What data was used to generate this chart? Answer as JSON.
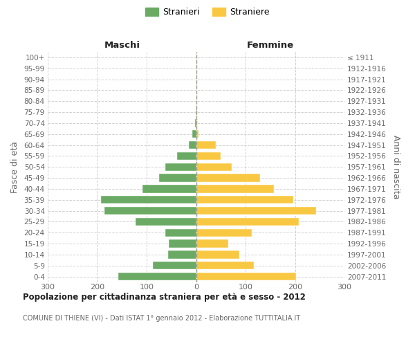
{
  "age_groups": [
    "0-4",
    "5-9",
    "10-14",
    "15-19",
    "20-24",
    "25-29",
    "30-34",
    "35-39",
    "40-44",
    "45-49",
    "50-54",
    "55-59",
    "60-64",
    "65-69",
    "70-74",
    "75-79",
    "80-84",
    "85-89",
    "90-94",
    "95-99",
    "100+"
  ],
  "birth_years": [
    "2007-2011",
    "2002-2006",
    "1997-2001",
    "1992-1996",
    "1987-1991",
    "1982-1986",
    "1977-1981",
    "1972-1976",
    "1967-1971",
    "1962-1966",
    "1957-1961",
    "1952-1956",
    "1947-1951",
    "1942-1946",
    "1937-1941",
    "1932-1936",
    "1927-1931",
    "1922-1926",
    "1917-1921",
    "1912-1916",
    "≤ 1911"
  ],
  "males": [
    158,
    87,
    57,
    55,
    62,
    122,
    186,
    192,
    108,
    75,
    62,
    38,
    15,
    8,
    2,
    1,
    0,
    0,
    0,
    0,
    0
  ],
  "females": [
    202,
    117,
    87,
    65,
    112,
    207,
    242,
    196,
    158,
    130,
    72,
    50,
    40,
    5,
    2,
    1,
    0,
    0,
    0,
    0,
    0
  ],
  "male_color": "#6aaa64",
  "female_color": "#f9c843",
  "title": "Popolazione per cittadinanza straniera per età e sesso - 2012",
  "subtitle": "COMUNE DI THIENE (VI) - Dati ISTAT 1° gennaio 2012 - Elaborazione TUTTITALIA.IT",
  "header_left": "Maschi",
  "header_right": "Femmine",
  "ylabel_left": "Fasce di età",
  "ylabel_right": "Anni di nascita",
  "xlim": 300,
  "legend_left": "Stranieri",
  "legend_right": "Straniere",
  "background_color": "#ffffff",
  "grid_color": "#cccccc",
  "text_color": "#666666",
  "title_color": "#222222",
  "xticks": [
    -300,
    -200,
    -100,
    0,
    100,
    200,
    300
  ],
  "xticklabels": [
    "300",
    "200",
    "100",
    "0",
    "100",
    "200",
    "300"
  ]
}
